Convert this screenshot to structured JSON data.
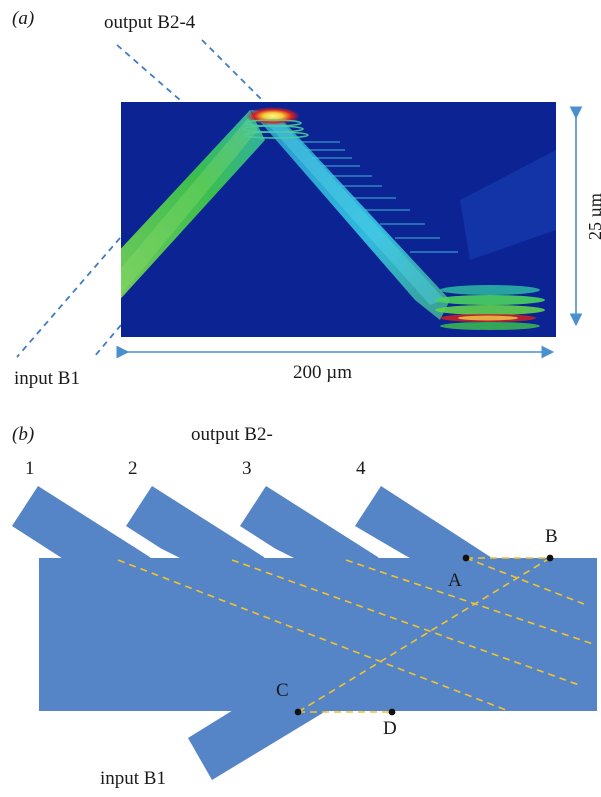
{
  "panel_a": {
    "label": "(a)",
    "output_label": "output B2-4",
    "input_label": "input B1",
    "width_label": "200 µm",
    "height_label": "25 µm"
  },
  "panel_b": {
    "label": "(b)",
    "output_label": "output B2-",
    "input_label": "input B1",
    "waveguide_numbers": [
      "1",
      "2",
      "3",
      "4"
    ],
    "points": [
      "A",
      "B",
      "C",
      "D"
    ]
  },
  "colors": {
    "field_background": "#0b1f8c",
    "beam_green": "#3ec64a",
    "beam_cyan": "#29c2e8",
    "hotspot_red": "#d42020",
    "hotspot_yellow": "#f7e94a",
    "waveguide_blue": "#5585c6",
    "dashed_blue": "#3e7cc4",
    "dashed_gold": "#f2c230",
    "arrow_blue": "#4a8fcf"
  }
}
